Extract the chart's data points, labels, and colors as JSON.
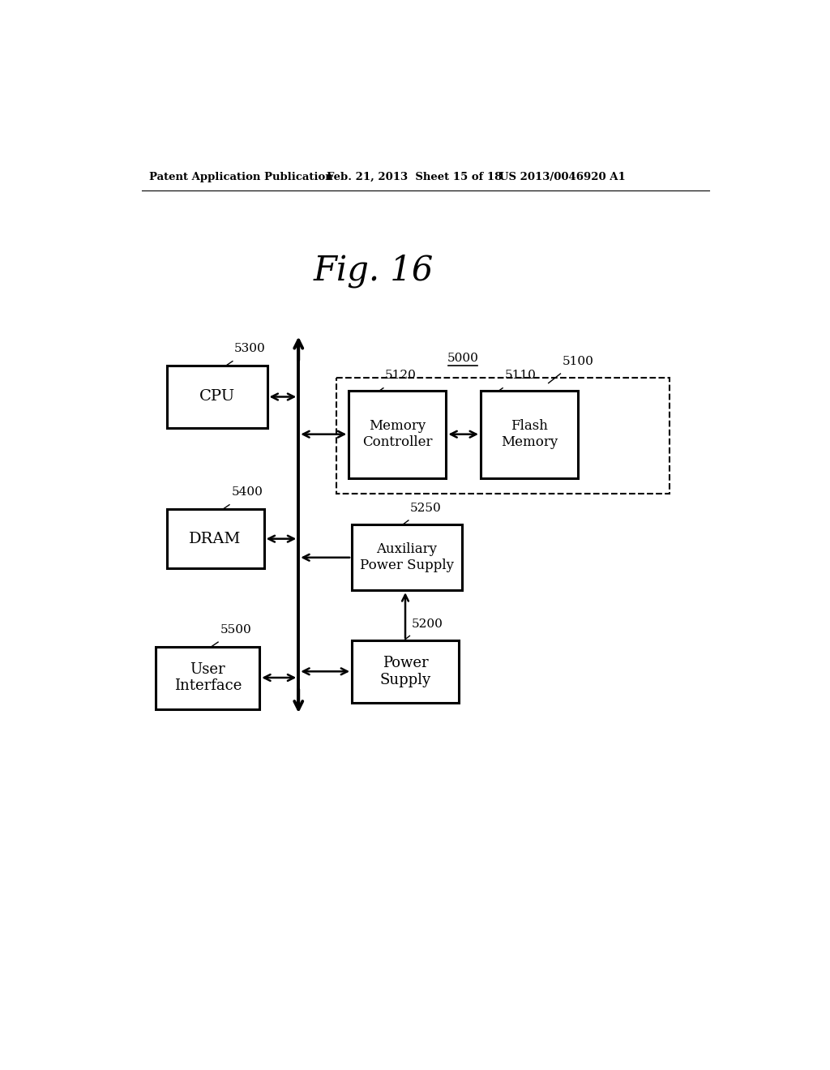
{
  "fig_title": "Fig. 16",
  "patent_header_left": "Patent Application Publication",
  "patent_header_mid": "Feb. 21, 2013  Sheet 15 of 18",
  "patent_header_right": "US 2013/0046920 A1",
  "label_5000": "5000",
  "label_5100": "5100",
  "label_5110": "5110",
  "label_5120": "5120",
  "label_5200": "5200",
  "label_5250": "5250",
  "label_5300": "5300",
  "label_5400": "5400",
  "label_5500": "5500",
  "box_cpu_label": "CPU",
  "box_dram_label": "DRAM",
  "box_user_label": "User\nInterface",
  "box_mem_ctrl_label": "Memory\nController",
  "box_flash_label": "Flash\nMemory",
  "box_aux_label": "Auxiliary\nPower Supply",
  "box_pwr_label": "Power\nSupply",
  "bg_color": "#ffffff",
  "box_color": "#ffffff",
  "box_edge_color": "#000000",
  "line_color": "#000000",
  "text_color": "#000000"
}
